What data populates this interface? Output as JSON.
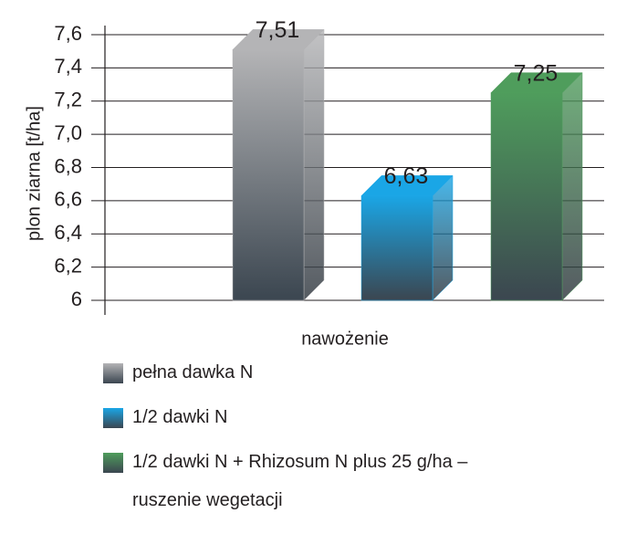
{
  "chart_data": {
    "type": "bar3d",
    "y_label": "plon ziarna [t/ha]",
    "x_label": "nawożenie",
    "categories": [
      null
    ],
    "series": [
      {
        "name": "pełna dawka N",
        "color": "#b4b4b6",
        "values": [
          7.51
        ],
        "value_labels": [
          "7,51"
        ]
      },
      {
        "name": "1/2 dawki N",
        "color": "#1aa6e6",
        "values": [
          6.63
        ],
        "value_labels": [
          "6,63"
        ]
      },
      {
        "name": "1/2 dawki N + Rhizosum N plus 25 g/ha – ruszenie wegetacji",
        "color": "#4f9d5c",
        "values": [
          7.25
        ],
        "value_labels": [
          "7,25"
        ]
      }
    ],
    "ylim": [
      6,
      7.6
    ],
    "yticks": [
      6,
      {
        "value": 6.2,
        "label": "6,2"
      },
      {
        "value": 6.4,
        "label": "6,4"
      },
      {
        "value": 6.6,
        "label": "6,6"
      },
      {
        "value": 6.8,
        "label": "6,8"
      },
      {
        "value": 7.0,
        "label": "7,0"
      },
      {
        "value": 7.2,
        "label": "7,2"
      },
      {
        "value": 7.4,
        "label": "7,4"
      },
      {
        "value": 7.6,
        "label": "7,6"
      }
    ],
    "grid": true
  }
}
